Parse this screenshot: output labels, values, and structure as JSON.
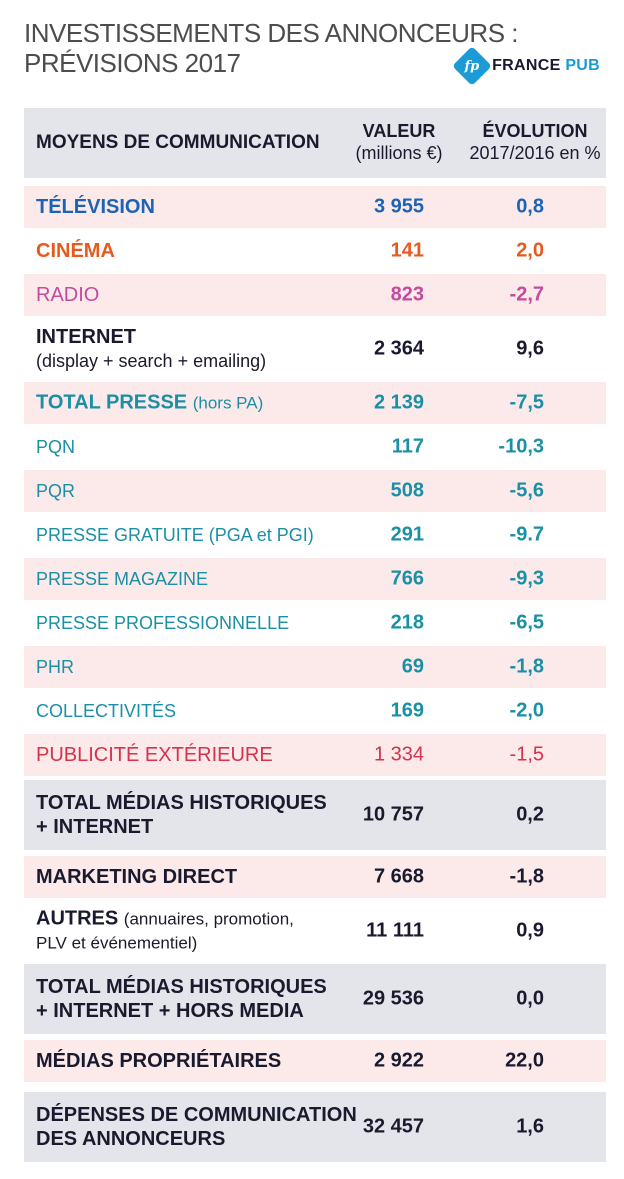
{
  "title": {
    "line1": "INVESTISSEMENTS DES ANNONCEURS :",
    "line2": "PRÉVISIONS 2017"
  },
  "logo": {
    "mark": "fp",
    "name_part1": "FRANCE",
    "name_part2": "PUB"
  },
  "header": {
    "col1": "MOYENS DE COMMUNICATION",
    "col2_line1": "VALEUR",
    "col2_line2": "(millions €)",
    "col3_line1": "ÉVOLUTION",
    "col3_line2": "2017/2016 en %"
  },
  "rows": [
    {
      "label": "TÉLÉVISION",
      "sub": "",
      "value": "3 955",
      "evolution": "0,8"
    },
    {
      "label": "CINÉMA",
      "sub": "",
      "value": "141",
      "evolution": "2,0"
    },
    {
      "label": "RADIO",
      "sub": "",
      "value": "823",
      "evolution": "-2,7"
    },
    {
      "label": "INTERNET",
      "sub": "(display + search + emailing)",
      "value": "2 364",
      "evolution": "9,6"
    },
    {
      "label": "TOTAL PRESSE",
      "sub": "(hors PA)",
      "value": "2 139",
      "evolution": "-7,5"
    },
    {
      "label": "PQN",
      "sub": "",
      "value": "117",
      "evolution": "-10,3"
    },
    {
      "label": "PQR",
      "sub": "",
      "value": "508",
      "evolution": "-5,6"
    },
    {
      "label": "PRESSE GRATUITE (PGA et PGI)",
      "sub": "",
      "value": "291",
      "evolution": "-9.7"
    },
    {
      "label": "PRESSE MAGAZINE",
      "sub": "",
      "value": "766",
      "evolution": "-9,3"
    },
    {
      "label": "PRESSE PROFESSIONNELLE",
      "sub": "",
      "value": "218",
      "evolution": "-6,5"
    },
    {
      "label": "PHR",
      "sub": "",
      "value": "69",
      "evolution": "-1,8"
    },
    {
      "label": "COLLECTIVITÉS",
      "sub": "",
      "value": "169",
      "evolution": "-2,0"
    },
    {
      "label": "PUBLICITÉ EXTÉRIEURE",
      "sub": "",
      "value": "1 334",
      "evolution": "-1,5"
    },
    {
      "label": "TOTAL MÉDIAS HISTORIQUES",
      "sub": "+ INTERNET",
      "value": "10 757",
      "evolution": "0,2"
    },
    {
      "label": "MARKETING DIRECT",
      "sub": "",
      "value": "7 668",
      "evolution": "-1,8"
    },
    {
      "label": "AUTRES",
      "sub": "(annuaires, promotion,",
      "sub2": "PLV et événementiel)",
      "value": "11 111",
      "evolution": "0,9"
    },
    {
      "label": "TOTAL MÉDIAS HISTORIQUES",
      "sub": "+ INTERNET + HORS MEDIA",
      "value": "29 536",
      "evolution": "0,0"
    },
    {
      "label": "MÉDIAS PROPRIÉTAIRES",
      "sub": "",
      "value": "2 922",
      "evolution": "22,0"
    },
    {
      "label": "DÉPENSES DE COMMUNICATION",
      "sub": "DES ANNONCEURS",
      "value": "32 457",
      "evolution": "1,6"
    }
  ],
  "colors": {
    "television": "#1d63b5",
    "cinema": "#e65a1f",
    "radio": "#c44a9e",
    "presse": "#1a8fa6",
    "publicite_exterieure": "#d9314a",
    "text_dark": "#1a1a2e",
    "row_pink": "#fceaea",
    "row_grey": "#e3e5ea",
    "brand_blue": "#1b9ad6"
  }
}
